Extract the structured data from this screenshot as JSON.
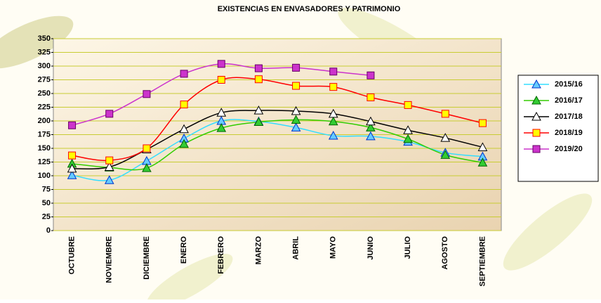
{
  "chart_data": {
    "type": "line",
    "title": "EXISTENCIAS EN ENVASADORES Y PATRIMONIO",
    "categories": [
      "OCTUBRE",
      "NOVIEMBRE",
      "DICIEMBRE",
      "ENERO",
      "FEBRERO",
      "MARZO",
      "ABRIL",
      "MAYO",
      "JUNIO",
      "JULIO",
      "AGOSTO",
      "SEPTIEMBRE"
    ],
    "series": [
      {
        "name": "2015/16",
        "color": "#33ddff",
        "marker": "triangle",
        "marker_fill": "#66ccff",
        "marker_stroke": "#0033cc",
        "values": [
          101,
          92,
          127,
          168,
          200,
          199,
          188,
          173,
          172,
          162,
          142,
          135
        ]
      },
      {
        "name": "2016/17",
        "color": "#33cc00",
        "marker": "triangle",
        "marker_fill": "#33cc33",
        "marker_stroke": "#006600",
        "values": [
          122,
          115,
          114,
          158,
          187,
          198,
          202,
          199,
          188,
          167,
          138,
          124
        ]
      },
      {
        "name": "2017/18",
        "color": "#000000",
        "marker": "triangle",
        "marker_fill": "#ffffff",
        "marker_stroke": "#000000",
        "values": [
          113,
          116,
          148,
          185,
          215,
          219,
          218,
          213,
          199,
          183,
          169,
          152
        ]
      },
      {
        "name": "2018/19",
        "color": "#ff0000",
        "marker": "square",
        "marker_fill": "#ffff00",
        "marker_stroke": "#ff0000",
        "values": [
          137,
          128,
          150,
          230,
          275,
          276,
          264,
          262,
          243,
          229,
          213,
          196
        ]
      },
      {
        "name": "2019/20",
        "color": "#cc33cc",
        "marker": "square",
        "marker_fill": "#cc33cc",
        "marker_stroke": "#660066",
        "values": [
          192,
          213,
          249,
          286,
          304,
          296,
          297,
          290,
          283,
          null,
          null,
          null
        ]
      }
    ],
    "ylim": [
      0,
      350
    ],
    "yticks": [
      0,
      25,
      50,
      75,
      100,
      125,
      150,
      175,
      200,
      225,
      250,
      275,
      300,
      325,
      350
    ],
    "grid": true,
    "smooth": true,
    "legend": "right"
  }
}
